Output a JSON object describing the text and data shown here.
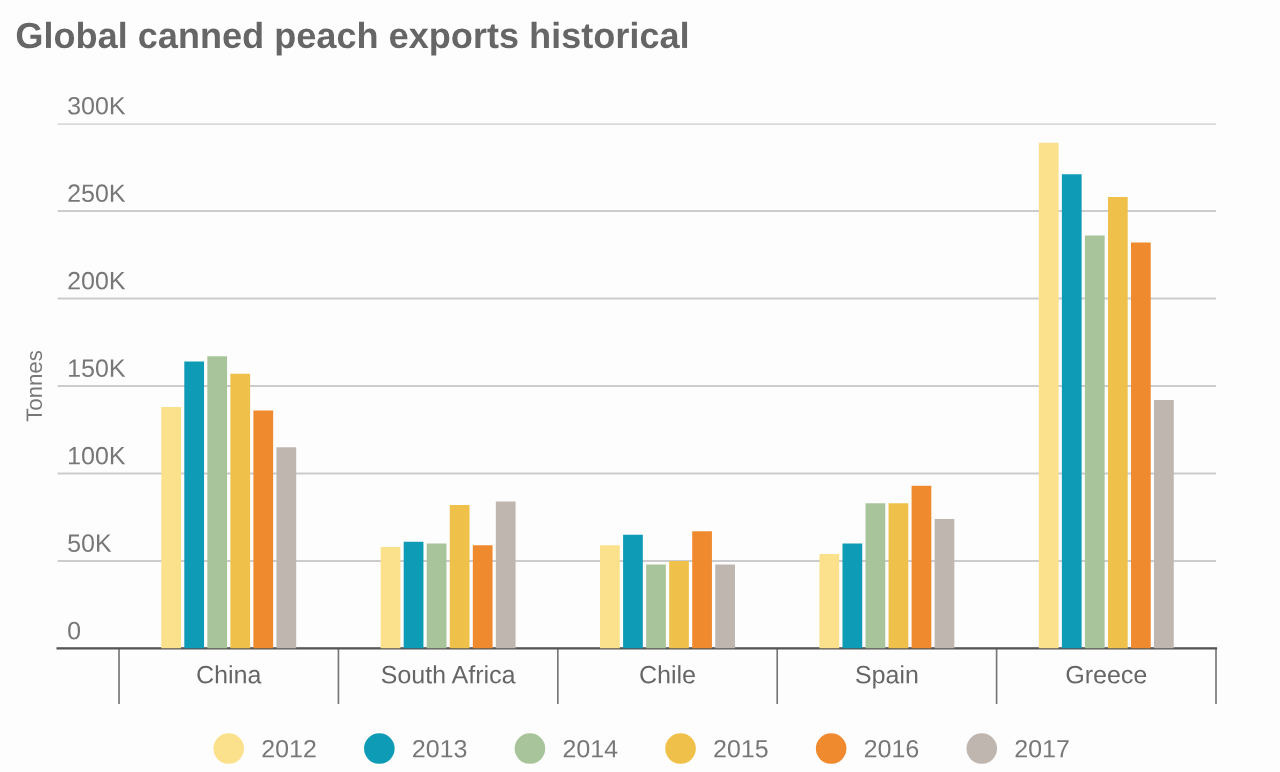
{
  "chart_data": {
    "type": "bar",
    "title": "Global canned peach exports historical",
    "ylabel": "Tonnes",
    "categories": [
      "China",
      "South Africa",
      "Chile",
      "Spain",
      "Greece"
    ],
    "series": [
      {
        "name": "2012",
        "color": "#fbe18c",
        "values": [
          138000,
          58000,
          59000,
          54000,
          289000
        ]
      },
      {
        "name": "2013",
        "color": "#0e9bb6",
        "values": [
          164000,
          61000,
          65000,
          60000,
          271000
        ]
      },
      {
        "name": "2014",
        "color": "#a8c49a",
        "values": [
          167000,
          60000,
          48000,
          83000,
          236000
        ]
      },
      {
        "name": "2015",
        "color": "#efc14a",
        "values": [
          157000,
          82000,
          50000,
          83000,
          258000
        ]
      },
      {
        "name": "2016",
        "color": "#f08a2e",
        "values": [
          136000,
          59000,
          67000,
          93000,
          232000
        ]
      },
      {
        "name": "2017",
        "color": "#bfb6b0",
        "values": [
          115000,
          84000,
          48000,
          74000,
          142000
        ]
      }
    ],
    "ylim": [
      0,
      300000
    ],
    "yticks": [
      {
        "value": 0,
        "label": "0"
      },
      {
        "value": 50000,
        "label": "50K"
      },
      {
        "value": 100000,
        "label": "100K"
      },
      {
        "value": 150000,
        "label": "150K"
      },
      {
        "value": 200000,
        "label": "200K"
      },
      {
        "value": 250000,
        "label": "250K"
      },
      {
        "value": 300000,
        "label": "300K"
      }
    ],
    "grid": "y",
    "legend": "bottom",
    "marker": "circle"
  }
}
